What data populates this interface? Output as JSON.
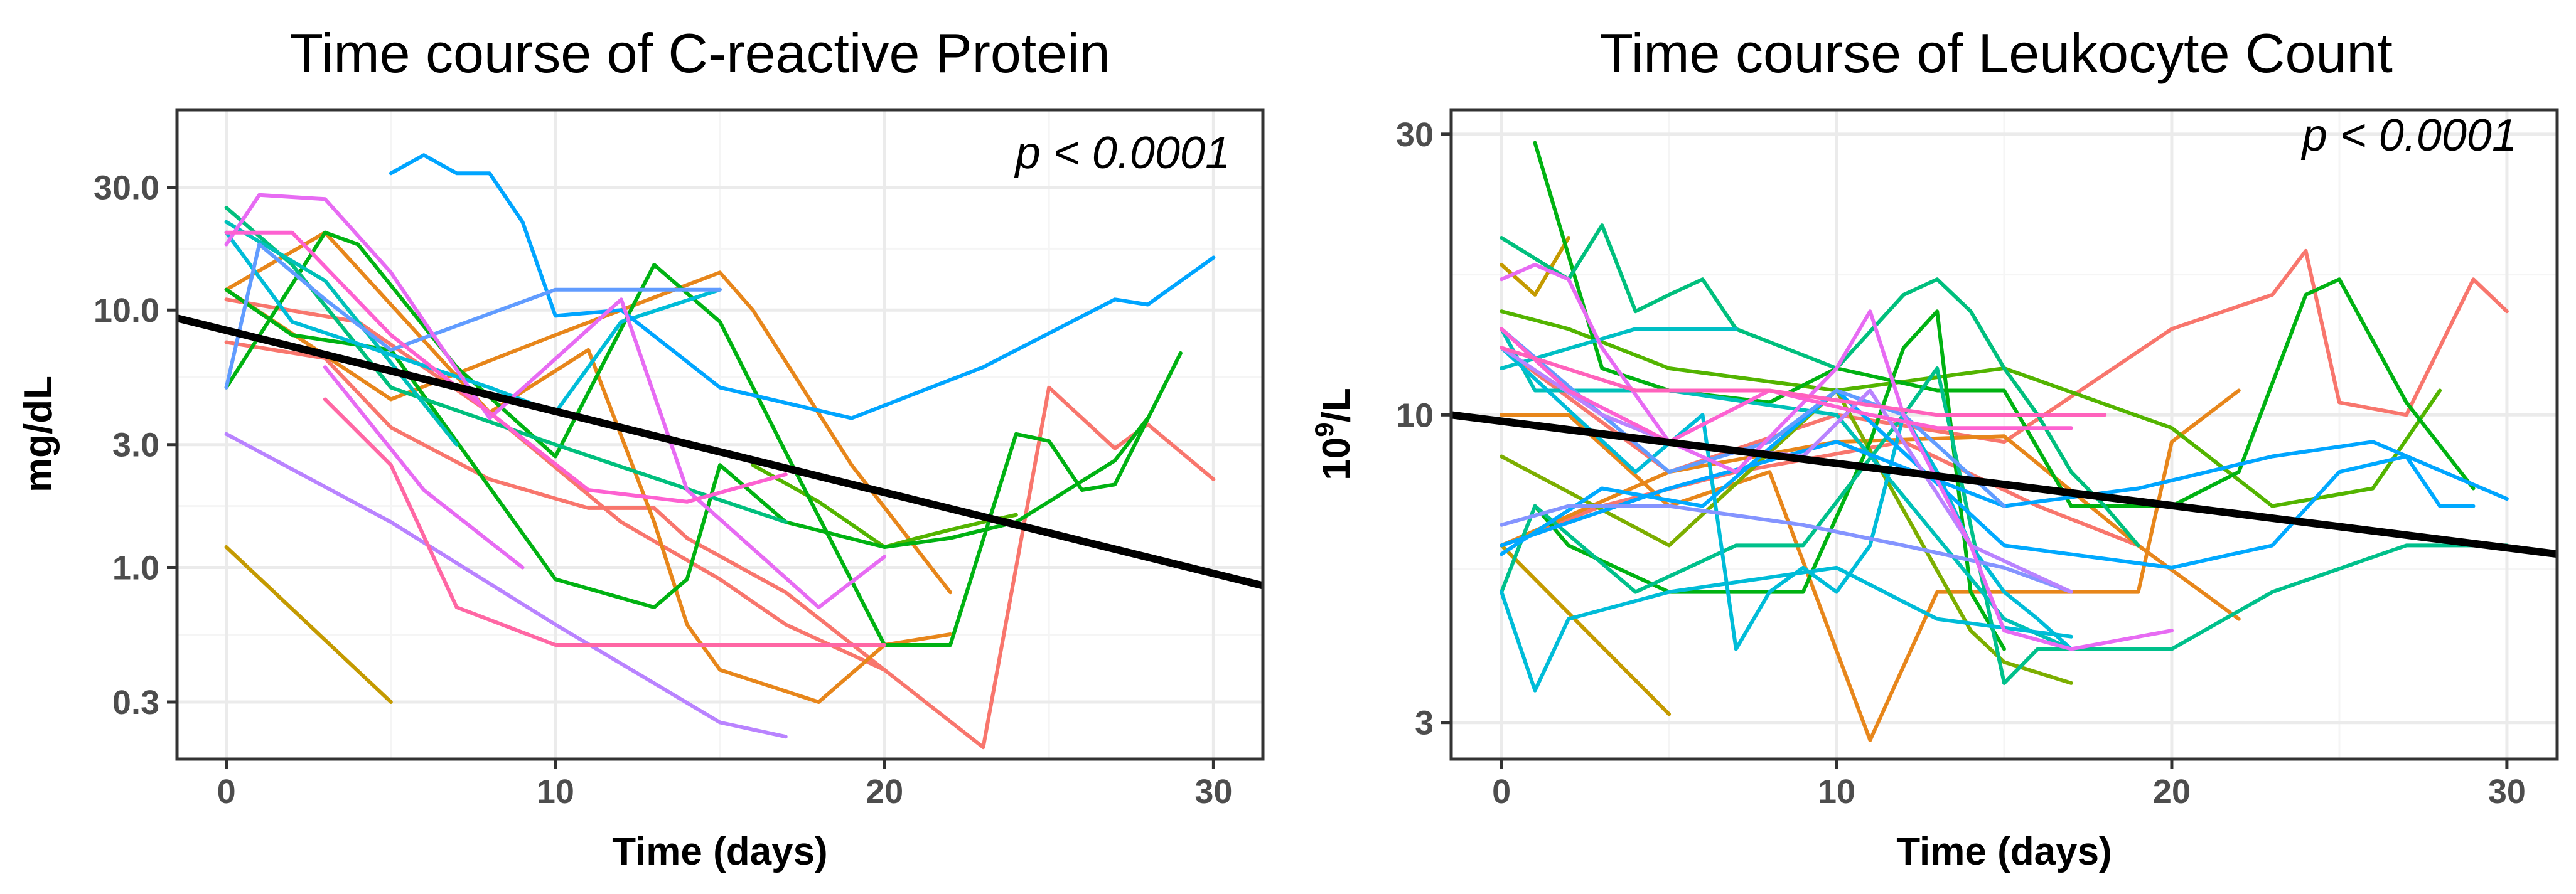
{
  "chart_data": [
    {
      "type": "line",
      "title": "Time course of C-reactive Protein",
      "xlabel": "Time (days)",
      "ylabel": "mg/dL",
      "yscale": "log",
      "xlim": [
        -1.5,
        31.5
      ],
      "ylim": [
        0.18,
        60
      ],
      "x_ticks": [
        0,
        10,
        20,
        30
      ],
      "x_tick_labels": [
        "0",
        "10",
        "20",
        "30"
      ],
      "y_ticks": [
        0.3,
        1.0,
        3.0,
        10.0,
        30.0
      ],
      "y_tick_labels": [
        "0.3",
        "1.0",
        "3.0",
        "10.0",
        "30.0"
      ],
      "annotation": "p < 0.0001",
      "trend": {
        "x": [
          -1.5,
          31.5
        ],
        "y": [
          9.3,
          0.85
        ]
      },
      "series": [
        {
          "color": "#F8766D",
          "x": [
            0,
            3,
            5,
            8,
            11,
            12,
            13,
            14,
            17,
            20,
            23,
            25,
            27,
            28,
            30
          ],
          "y": [
            7.5,
            6.5,
            3.5,
            2.2,
            1.7,
            1.7,
            1.7,
            1.3,
            0.8,
            0.4,
            0.2,
            5,
            2.9,
            3.6,
            2.2
          ]
        },
        {
          "color": "#F8766D",
          "x": [
            0,
            4,
            8,
            12,
            15,
            17,
            20
          ],
          "y": [
            11,
            9,
            4,
            1.5,
            0.9,
            0.6,
            0.4
          ]
        },
        {
          "color": "#E7861B",
          "x": [
            0,
            5,
            10,
            15,
            16,
            19,
            22
          ],
          "y": [
            12,
            4.5,
            8,
            14,
            10,
            2.5,
            0.8
          ]
        },
        {
          "color": "#E7861B",
          "x": [
            0,
            3,
            8,
            11,
            13,
            14,
            15,
            18,
            20,
            22
          ],
          "y": [
            12,
            20,
            4,
            7,
            1.5,
            0.6,
            0.4,
            0.3,
            0.5,
            0.55
          ]
        },
        {
          "color": "#C49A00",
          "x": [
            0,
            5
          ],
          "y": [
            1.2,
            0.3
          ]
        },
        {
          "color": "#53B400",
          "x": [
            16,
            18,
            20,
            21,
            22,
            23,
            24
          ],
          "y": [
            2.5,
            1.8,
            1.2,
            1.3,
            1.4,
            1.5,
            1.6
          ]
        },
        {
          "color": "#00B212",
          "x": [
            0,
            3,
            4,
            7,
            10,
            13,
            15,
            17,
            20,
            22,
            24,
            25,
            26,
            27,
            29
          ],
          "y": [
            5,
            20,
            18,
            6,
            2.7,
            15,
            9,
            2.8,
            0.5,
            0.5,
            3.3,
            3.1,
            2,
            2.1,
            6.8
          ]
        },
        {
          "color": "#00B212",
          "x": [
            0,
            2,
            5,
            10,
            13,
            14,
            15,
            17,
            20,
            22,
            24,
            27,
            28
          ],
          "y": [
            12,
            8,
            7,
            0.9,
            0.7,
            0.9,
            2.5,
            1.5,
            1.2,
            1.3,
            1.5,
            2.6,
            3.8
          ]
        },
        {
          "color": "#00BF7D",
          "x": [
            0,
            2,
            5,
            10,
            17
          ],
          "y": [
            25,
            15,
            5,
            3,
            1.5
          ]
        },
        {
          "color": "#00C0B8",
          "x": [
            0,
            3,
            7
          ],
          "y": [
            22,
            13,
            3
          ]
        },
        {
          "color": "#00BCD8",
          "x": [
            0,
            2,
            8,
            10,
            12,
            15
          ],
          "y": [
            20,
            9,
            5,
            4,
            9,
            12
          ]
        },
        {
          "color": "#00A5FF",
          "x": [
            5,
            6,
            7,
            8,
            9,
            10,
            12,
            15,
            19,
            23,
            27,
            28,
            30
          ],
          "y": [
            34,
            40,
            34,
            34,
            22,
            9.5,
            10,
            5,
            3.8,
            6,
            11,
            10.5,
            16
          ]
        },
        {
          "color": "#619CFF",
          "x": [
            0,
            1,
            3,
            5,
            10,
            15
          ],
          "y": [
            5,
            18,
            11,
            7,
            12,
            12
          ]
        },
        {
          "color": "#B983FF",
          "x": [
            0,
            5,
            10,
            15,
            17
          ],
          "y": [
            3.3,
            1.5,
            0.6,
            0.25,
            0.22
          ]
        },
        {
          "color": "#E76BF3",
          "x": [
            3,
            6,
            9
          ],
          "y": [
            6,
            2,
            1
          ]
        },
        {
          "color": "#E76BF3",
          "x": [
            0,
            1,
            3,
            5,
            8,
            12,
            14,
            18,
            20
          ],
          "y": [
            18,
            28,
            27,
            14,
            3.8,
            11,
            2,
            0.7,
            1.1
          ]
        },
        {
          "color": "#FD61D1",
          "x": [
            0,
            2,
            5,
            8,
            11,
            14,
            17
          ],
          "y": [
            20,
            20,
            8,
            4,
            2,
            1.8,
            2.3
          ]
        },
        {
          "color": "#FF67A4",
          "x": [
            3,
            5,
            7,
            10,
            15,
            20
          ],
          "y": [
            4.5,
            2.5,
            0.7,
            0.5,
            0.5,
            0.5
          ]
        }
      ]
    },
    {
      "type": "line",
      "title": "Time course of Leukocyte Count",
      "xlabel": "Time (days)",
      "ylabel_base": "10",
      "ylabel_sup": "9",
      "ylabel_rest": "/L",
      "yscale": "log",
      "xlim": [
        -1.5,
        31.5
      ],
      "ylim": [
        2.6,
        33
      ],
      "x_ticks": [
        0,
        10,
        20,
        30
      ],
      "x_tick_labels": [
        "0",
        "10",
        "20",
        "30"
      ],
      "y_ticks": [
        3,
        10,
        30
      ],
      "y_tick_labels": [
        "3",
        "10",
        "30"
      ],
      "annotation": "p < 0.0001",
      "trend": {
        "x": [
          -1.5,
          31.5
        ],
        "y": [
          10,
          5.8
        ]
      },
      "series": [
        {
          "color": "#F8766D",
          "x": [
            0,
            5,
            10,
            15,
            20,
            23,
            24,
            25,
            27,
            29,
            30
          ],
          "y": [
            13,
            8,
            10,
            9,
            14,
            16,
            19,
            10.5,
            10,
            17,
            15
          ]
        },
        {
          "color": "#F8766D",
          "x": [
            0,
            3,
            7,
            12,
            16,
            19
          ],
          "y": [
            6,
            7,
            8,
            9,
            7,
            6
          ]
        },
        {
          "color": "#E7861B",
          "x": [
            0,
            2,
            5,
            8,
            11,
            13,
            15,
            17,
            19,
            20,
            22
          ],
          "y": [
            10,
            10,
            7,
            8,
            2.8,
            5,
            5,
            5,
            5,
            9,
            11
          ]
        },
        {
          "color": "#E7861B",
          "x": [
            0,
            5,
            10,
            15,
            19,
            22
          ],
          "y": [
            6,
            8,
            9,
            9.2,
            6,
            4.5
          ]
        },
        {
          "color": "#C49A00",
          "x": [
            0,
            1,
            2
          ],
          "y": [
            18,
            16,
            20
          ]
        },
        {
          "color": "#C49A00",
          "x": [
            0,
            5
          ],
          "y": [
            6,
            3.1
          ]
        },
        {
          "color": "#7CAE00",
          "x": [
            0,
            5,
            10,
            14,
            15,
            17
          ],
          "y": [
            8.5,
            6,
            11,
            4.3,
            3.8,
            3.5
          ]
        },
        {
          "color": "#53B400",
          "x": [
            0,
            2,
            5,
            10,
            15,
            20,
            23,
            26,
            28
          ],
          "y": [
            15,
            14,
            12,
            11,
            12,
            9.5,
            7,
            7.5,
            11
          ]
        },
        {
          "color": "#00B212",
          "x": [
            1,
            3,
            5,
            8,
            10,
            13,
            15,
            17,
            20,
            22,
            24,
            25,
            27,
            29
          ],
          "y": [
            29,
            12,
            11,
            10.5,
            12,
            11,
            11,
            7,
            7,
            8,
            16,
            17,
            10.5,
            7.5
          ]
        },
        {
          "color": "#00B212",
          "x": [
            1,
            2,
            5,
            9,
            11,
            12,
            13,
            14,
            15
          ],
          "y": [
            7,
            6,
            5,
            5,
            9,
            13,
            15,
            5,
            4
          ]
        },
        {
          "color": "#00BF7D",
          "x": [
            0,
            2,
            3,
            4,
            5,
            6,
            7,
            10,
            12,
            13,
            14,
            15,
            16,
            17,
            18,
            19
          ],
          "y": [
            20,
            17,
            21,
            15,
            16,
            17,
            14,
            12,
            16,
            17,
            15,
            12,
            10,
            8,
            7,
            6
          ]
        },
        {
          "color": "#00C08B",
          "x": [
            0,
            1,
            4,
            7,
            9,
            12,
            13,
            15,
            16,
            20,
            23,
            27,
            30
          ],
          "y": [
            5,
            7,
            5,
            6,
            6,
            10,
            12,
            3.5,
            4,
            4,
            5,
            6,
            6
          ]
        },
        {
          "color": "#00C0B8",
          "x": [
            0,
            1,
            5,
            10,
            15,
            17
          ],
          "y": [
            14,
            11,
            11,
            10,
            4.5,
            4
          ]
        },
        {
          "color": "#00BFC4",
          "x": [
            0,
            4,
            7
          ],
          "y": [
            12,
            14,
            14
          ]
        },
        {
          "color": "#00BCD8",
          "x": [
            0,
            1,
            2,
            5,
            10,
            13,
            17
          ],
          "y": [
            5,
            3.4,
            4.5,
            5,
            5.5,
            4.5,
            4.2
          ]
        },
        {
          "color": "#00BCD8",
          "x": [
            0,
            4,
            6,
            7,
            8,
            9,
            10,
            11,
            12,
            13,
            14,
            15,
            16,
            17
          ],
          "y": [
            13,
            8,
            10,
            4,
            5,
            5.5,
            5,
            6,
            10,
            8,
            6,
            5,
            4.5,
            4
          ]
        },
        {
          "color": "#00A5FF",
          "x": [
            0,
            5,
            10,
            15,
            19,
            23,
            26,
            30
          ],
          "y": [
            6,
            7.5,
            9,
            7,
            7.5,
            8.5,
            9,
            7.2
          ]
        },
        {
          "color": "#00A9FF",
          "x": [
            0,
            3,
            6,
            10,
            15,
            20,
            23,
            25,
            27,
            28,
            29
          ],
          "y": [
            5.8,
            7.5,
            7,
            11,
            6,
            5.5,
            6,
            8,
            8.5,
            7,
            7
          ]
        },
        {
          "color": "#619CFF",
          "x": [
            0,
            3,
            5,
            8,
            10,
            12,
            15
          ],
          "y": [
            14,
            10,
            8,
            9,
            11,
            10,
            7
          ]
        },
        {
          "color": "#8494FF",
          "x": [
            0,
            2,
            5,
            9,
            12,
            15,
            17
          ],
          "y": [
            6.5,
            7,
            7,
            6.5,
            6,
            5.5,
            5
          ]
        },
        {
          "color": "#B983FF",
          "x": [
            0,
            3,
            5,
            9,
            11,
            14,
            17
          ],
          "y": [
            13,
            10,
            9,
            8.5,
            11,
            6,
            5
          ]
        },
        {
          "color": "#E76BF3",
          "x": [
            0,
            1,
            2,
            3,
            5,
            7,
            10,
            11,
            12,
            14,
            15,
            17,
            20
          ],
          "y": [
            17,
            18,
            17,
            13,
            9,
            8,
            12,
            15,
            10,
            6,
            4.3,
            4,
            4.3
          ]
        },
        {
          "color": "#FD61D1",
          "x": [
            0,
            2,
            5,
            8,
            11,
            13,
            17
          ],
          "y": [
            14,
            11,
            9,
            11,
            10,
            9.5,
            9.5
          ]
        },
        {
          "color": "#FF62BC",
          "x": [
            0,
            4,
            8,
            13,
            18
          ],
          "y": [
            13,
            11,
            11,
            10,
            10
          ]
        }
      ]
    }
  ]
}
